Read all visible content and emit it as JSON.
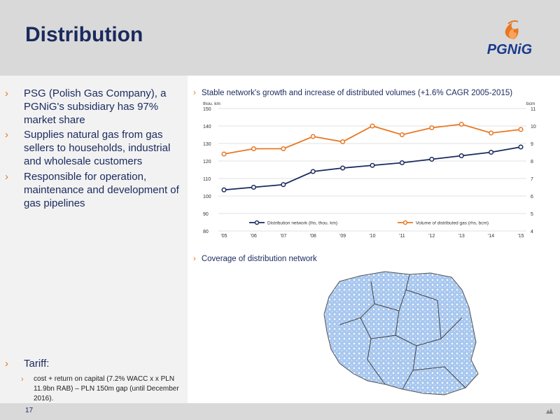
{
  "header": {
    "title": "Distribution",
    "logo_text": "PGNiG"
  },
  "left": {
    "bullets": [
      "PSG (Polish Gas Company), a PGNiG's subsidiary has 97% market share",
      "Supplies natural gas from gas sellers to households, industrial and wholesale customers",
      "Responsible for operation, maintenance and development of gas pipelines"
    ],
    "tariff_heading": "Tariff:",
    "tariff_sub": "cost + return on capital (7.2% WACC x x PLN 11.9bn RAB) – PLN 150m gap (until December 2016)."
  },
  "chart_heading": "Stable network's growth and increase of distributed volumes (+1.6% CAGR 2005-2015)",
  "map_heading": "Coverage of distribution network",
  "footer": {
    "page": "17"
  },
  "colors": {
    "navy": "#1a2a5e",
    "orange": "#e87722",
    "header_gray": "#d9d9d9"
  },
  "chart_data": {
    "type": "line",
    "categories": [
      "'05",
      "'06",
      "'07",
      "'08",
      "'09",
      "'10",
      "'11",
      "'12",
      "'13",
      "'14",
      "'15"
    ],
    "y_left_label": "thou. km",
    "y_right_label": "bcm",
    "ylim_left": [
      80,
      150
    ],
    "ylim_right": [
      4,
      11
    ],
    "yticks_left": [
      "80",
      "90",
      "100",
      "110",
      "120",
      "130",
      "140",
      "150"
    ],
    "yticks_right": [
      "4",
      "5",
      "6",
      "7",
      "8",
      "9",
      "10",
      "11"
    ],
    "legend_position": "bottom-inside",
    "series": [
      {
        "name": "Distribution network (lhs, thou. km)",
        "axis": "left",
        "color": "#1a2a5e",
        "values": [
          103.5,
          105,
          106.5,
          114,
          116,
          117.5,
          119,
          121,
          123,
          125,
          128
        ]
      },
      {
        "name": "Volume of distributed gas (rhs, bcm)",
        "axis": "right",
        "color": "#e87722",
        "values": [
          8.4,
          8.7,
          8.7,
          9.4,
          9.1,
          10.0,
          9.5,
          9.9,
          10.1,
          9.6,
          9.8
        ]
      }
    ]
  }
}
